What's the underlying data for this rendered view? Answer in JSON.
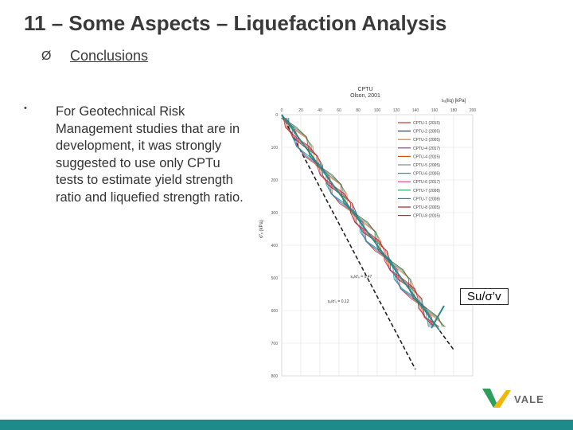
{
  "slide": {
    "title": "11 – Some Aspects – Liquefaction Analysis",
    "subtitle_marker": "Ø",
    "subtitle": "Conclusions",
    "bullet_marker": "•",
    "bullet_text": "For Geotechnical Risk Management studies that are in development, it was strongly suggested to use only CPTu tests to estimate yield strength ratio and liquefied strength ratio.",
    "callout": "Su/σ’v",
    "logo_text": "VALE"
  },
  "colors": {
    "footer": "#1f8a8a",
    "logo_green": "#2e9e5b",
    "logo_yellow": "#f2b705",
    "callout_line": "#2a8a88"
  },
  "chart_data": {
    "type": "line",
    "title": "CPTU",
    "subtitle": "Olson, 2001",
    "xlabel": "sᵤ(liq) [kPa]",
    "ylabel": "σ'ᵥ (kPa)",
    "x_ticks": [
      "0",
      "20",
      "40",
      "60",
      "80",
      "100",
      "120",
      "140",
      "160",
      "180",
      "200"
    ],
    "y_ticks": [
      "0",
      "100",
      "200",
      "300",
      "400",
      "500",
      "600",
      "700",
      "800"
    ],
    "xlim": [
      0,
      200
    ],
    "ylim": [
      0,
      800
    ],
    "legend": [
      "CPTU-1 (2015)",
      "CPTU-2 (2005)",
      "CPTU-3 (2005)",
      "CPTU-4 (2017)",
      "CPTU-4 (2015)",
      "CPTU-5 (2005)",
      "CPTU-6 (2005)",
      "CPTU-6 (2017)",
      "CPTU-7 (2008)",
      "CPTU-7 (2008)",
      "CPTU-8 (2005)",
      "CPTU-8 (2015)"
    ],
    "legend_placement": "top-right",
    "annotations": [
      "sᵤ/σ'ᵥ = 0,47",
      "sᵤ/σ'ᵥ = 0,12"
    ],
    "reference_lines": [
      {
        "name": "upper bound",
        "points": [
          [
            0,
            0
          ],
          [
            180,
            720
          ]
        ]
      },
      {
        "name": "lower bound",
        "points": [
          [
            0,
            0
          ],
          [
            140,
            780
          ]
        ]
      }
    ],
    "trend_line": {
      "points": [
        [
          0,
          0
        ],
        [
          165,
          660
        ]
      ]
    }
  }
}
